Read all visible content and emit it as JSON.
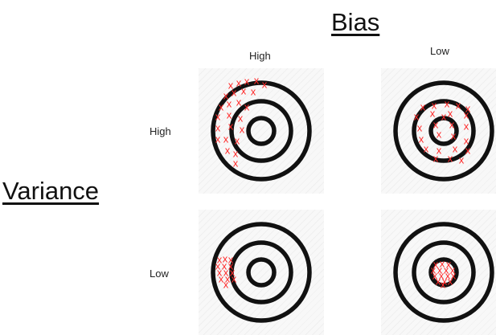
{
  "titles": {
    "bias": "Bias",
    "variance": "Variance"
  },
  "bias_columns": {
    "high": "High",
    "low": "Low"
  },
  "variance_rows": {
    "high": "High",
    "low": "Low"
  },
  "marker": {
    "symbol": "x",
    "color": "#ff2a2a"
  },
  "target_color": "#111111",
  "panels": [
    {
      "id": "panel-hh",
      "bias": "High",
      "variance": "High"
    },
    {
      "id": "panel-hl",
      "bias": "Low",
      "variance": "High"
    },
    {
      "id": "panel-lh",
      "bias": "High",
      "variance": "Low"
    },
    {
      "id": "panel-ll",
      "bias": "Low",
      "variance": "Low"
    }
  ]
}
